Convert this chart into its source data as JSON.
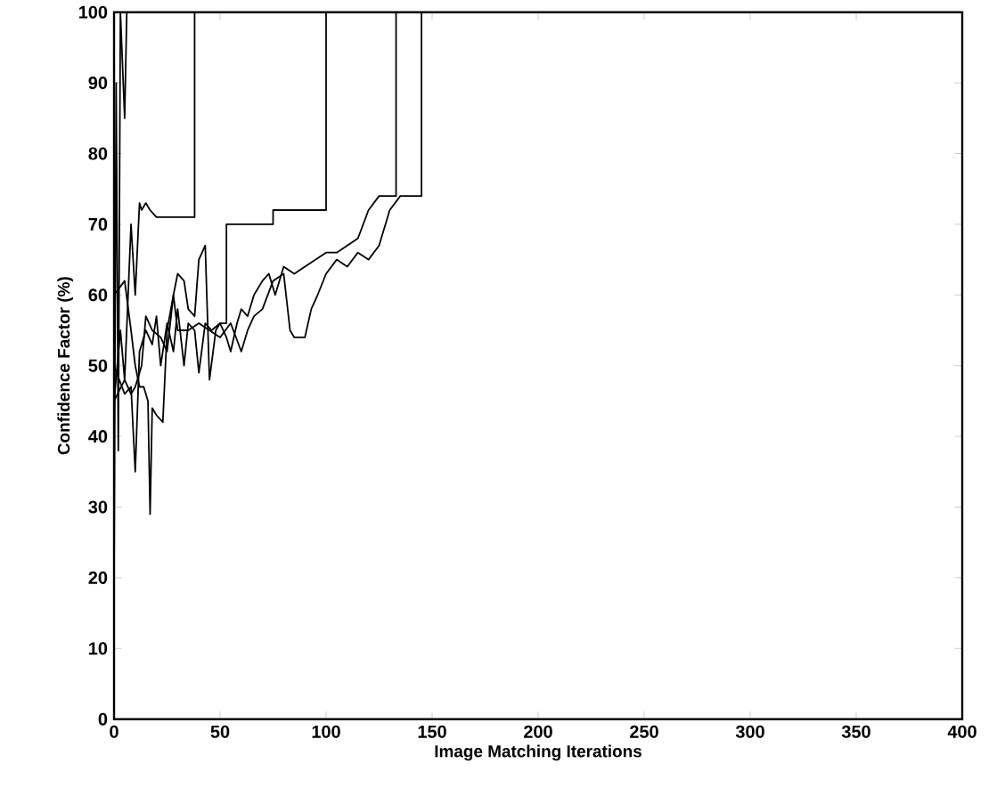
{
  "chart_data": {
    "type": "line",
    "xlabel": "Image Matching Iterations",
    "ylabel": "Confidence Factor (%)",
    "xlim": [
      0,
      400
    ],
    "ylim": [
      0,
      100
    ],
    "xticks": [
      0,
      50,
      100,
      150,
      200,
      250,
      300,
      350,
      400
    ],
    "yticks": [
      0,
      10,
      20,
      30,
      40,
      50,
      60,
      70,
      80,
      90,
      100
    ],
    "grid": false,
    "marker": "none",
    "line_style": "solid",
    "series": [
      {
        "color": "#000000",
        "x": [
          0,
          1,
          2,
          3,
          5,
          6
        ],
        "values": [
          20,
          90,
          38,
          100,
          85,
          100
        ]
      },
      {
        "color": "#000000",
        "x": [
          0,
          3,
          5,
          8,
          10,
          12,
          13,
          15,
          17,
          20,
          38,
          38
        ],
        "values": [
          45,
          55,
          48,
          70,
          60,
          73,
          72,
          73,
          72,
          71,
          71,
          100
        ]
      },
      {
        "color": "#000000",
        "x": [
          0,
          5,
          8,
          10,
          12,
          14,
          16,
          17,
          18,
          20,
          23,
          25,
          28,
          30,
          33,
          35,
          38,
          40,
          43,
          45,
          48,
          50,
          53,
          53,
          60,
          75,
          75,
          100,
          100
        ],
        "values": [
          60,
          62,
          55,
          50,
          47,
          47,
          45,
          29,
          44,
          43,
          42,
          55,
          60,
          63,
          62,
          58,
          57,
          65,
          67,
          48,
          55,
          56,
          56,
          70,
          70,
          70,
          72,
          72,
          100
        ]
      },
      {
        "color": "#000000",
        "x": [
          0,
          5,
          8,
          10,
          12,
          15,
          18,
          20,
          22,
          25,
          28,
          30,
          33,
          35,
          38,
          40,
          43,
          46,
          50,
          53,
          55,
          58,
          60,
          63,
          66,
          70,
          73,
          76,
          80,
          85,
          90,
          95,
          100,
          105,
          110,
          115,
          120,
          125,
          130,
          133,
          133
        ],
        "values": [
          50,
          46,
          47,
          35,
          52,
          55,
          53,
          57,
          50,
          56,
          52,
          58,
          50,
          56,
          55,
          49,
          56,
          55,
          56,
          54,
          52,
          56,
          58,
          57,
          60,
          62,
          63,
          60,
          64,
          63,
          64,
          65,
          66,
          66,
          67,
          68,
          72,
          74,
          74,
          74,
          100
        ]
      },
      {
        "color": "#000000",
        "x": [
          0,
          5,
          8,
          10,
          13,
          15,
          18,
          22,
          25,
          28,
          30,
          35,
          40,
          45,
          50,
          55,
          60,
          63,
          66,
          70,
          75,
          80,
          83,
          85,
          90,
          93,
          96,
          100,
          105,
          110,
          115,
          120,
          125,
          128,
          130,
          135,
          145,
          145
        ],
        "values": [
          45,
          48,
          46,
          47,
          50,
          57,
          55,
          54,
          52,
          60,
          55,
          55,
          56,
          55,
          54,
          56,
          52,
          55,
          57,
          58,
          62,
          63,
          55,
          54,
          54,
          58,
          60,
          63,
          65,
          64,
          66,
          65,
          67,
          70,
          72,
          74,
          74,
          100
        ]
      }
    ]
  }
}
